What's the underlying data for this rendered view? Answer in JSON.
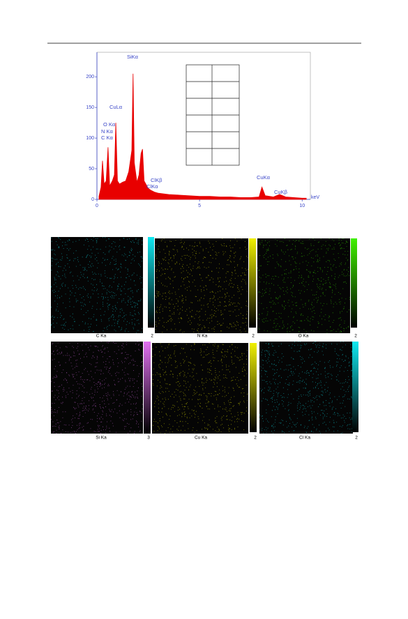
{
  "chart_data": {
    "type": "area",
    "x": [
      0.1,
      0.2,
      0.27,
      0.35,
      0.45,
      0.54,
      0.62,
      0.75,
      0.85,
      0.92,
      1.0,
      1.1,
      1.25,
      1.4,
      1.55,
      1.7,
      1.76,
      1.82,
      1.95,
      2.05,
      2.15,
      2.22,
      2.3,
      2.5,
      2.62,
      2.8,
      3.0,
      3.5,
      4.0,
      4.5,
      5.0,
      5.5,
      6.0,
      6.5,
      7.0,
      7.5,
      7.9,
      8.04,
      8.2,
      8.6,
      8.9,
      9.2,
      9.6,
      10.0,
      10.2
    ],
    "values": [
      5,
      20,
      63,
      25,
      30,
      85,
      22,
      30,
      40,
      125,
      30,
      25,
      28,
      30,
      45,
      80,
      205,
      60,
      28,
      40,
      75,
      82,
      30,
      18,
      15,
      12,
      10,
      8,
      7,
      6,
      5,
      5,
      4,
      4,
      3,
      3,
      4,
      20,
      6,
      4,
      8,
      4,
      3,
      2,
      2
    ],
    "color": "#e80000",
    "xlim": [
      0,
      10.4
    ],
    "xticks": [
      0,
      5,
      10
    ],
    "ylim": [
      0,
      240
    ],
    "yticks": [
      0,
      50,
      100,
      150,
      200
    ],
    "x_unit": "keV",
    "annotations": [
      "SiKα",
      "CuLα",
      "O Kα",
      "N Kα",
      "C Kα",
      "ClKβ",
      "ClKα",
      "CuKα",
      "CuKβ"
    ]
  },
  "maps": [
    {
      "label": "C Ka",
      "scale": 2,
      "color": "#10e8f0"
    },
    {
      "label": "N Ka",
      "scale": 2,
      "color": "#f0f000"
    },
    {
      "label": "O Ka",
      "scale": 2,
      "color": "#40f000"
    },
    {
      "label": "Si Ka",
      "scale": 3,
      "color": "#e070f0"
    },
    {
      "label": "Cu Ka",
      "scale": 2,
      "color": "#f0f000"
    },
    {
      "label": "Cl Ka",
      "scale": 2,
      "color": "#10e8f0"
    }
  ]
}
